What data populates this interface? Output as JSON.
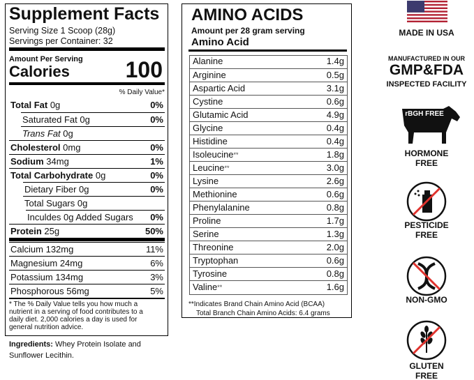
{
  "supplement_facts": {
    "title": "Supplement Facts",
    "serving_size": "Serving Size 1 Scoop (28g)",
    "servings_per_container": "Servings per Container: 32",
    "amount_per_serving": "Amount Per Serving",
    "calories_label": "Calories",
    "calories_value": "100",
    "daily_value_header": "% Daily Value*",
    "rows": [
      {
        "label": "Total Fat",
        "amount": "0g",
        "dv": "0%"
      },
      {
        "label": "Saturated Fat",
        "amount": "0g",
        "dv": "0%"
      },
      {
        "label": "Trans Fat",
        "amount": "0g"
      },
      {
        "label": "Cholesterol",
        "amount": "0mg",
        "dv": "0%"
      },
      {
        "label": "Sodium",
        "amount": "34mg",
        "dv": "1%"
      },
      {
        "label": "Total Carbohydrate",
        "amount": "0g",
        "dv": "0%"
      },
      {
        "label": "Dietary Fiber",
        "amount": "0g",
        "dv": "0%"
      },
      {
        "label": "Total Sugars",
        "amount": "0g"
      },
      {
        "label": "Inculdes 0g Added Sugars",
        "dv": "0%"
      },
      {
        "label": "Protein",
        "amount": "25g",
        "dv": "50%"
      }
    ],
    "minerals": [
      {
        "label": "Calcium",
        "amount": "132mg",
        "dv": "11%"
      },
      {
        "label": "Magnesium",
        "amount": "24mg",
        "dv": "6%"
      },
      {
        "label": "Potassium",
        "amount": "134mg",
        "dv": "3%"
      },
      {
        "label": "Phosphorous",
        "amount": "56mg",
        "dv": "5%"
      }
    ],
    "footnote": "* The % Daily Value tells you how much a nutrient in a serving of food contributes to a daily diet. 2,000 calories a day is used for general nutrition advice."
  },
  "ingredients": {
    "label": "Ingredients:",
    "text": "Whey Protein Isolate and Sunflower Lecithin."
  },
  "amino_acids": {
    "title": "AMINO ACIDS",
    "subtitle": "Amount per 28 gram serving",
    "column_header": "Amino Acid",
    "rows": [
      {
        "name": "Alanine",
        "amount": "1.4g"
      },
      {
        "name": "Arginine",
        "amount": "0.5g"
      },
      {
        "name": "Aspartic Acid",
        "amount": "3.1g"
      },
      {
        "name": "Cystine",
        "amount": "0.6g"
      },
      {
        "name": "Glutamic Acid",
        "amount": "4.9g"
      },
      {
        "name": "Glycine",
        "amount": "0.4g"
      },
      {
        "name": "Histidine",
        "amount": "0.4g"
      },
      {
        "name": "Isoleucine",
        "note": "**",
        "amount": "1.8g"
      },
      {
        "name": "Leucine",
        "note": "**",
        "amount": "3.0g"
      },
      {
        "name": "Lysine",
        "amount": "2.6g"
      },
      {
        "name": "Methionine",
        "amount": "0.6g"
      },
      {
        "name": "Phenylalanine",
        "amount": "0.8g"
      },
      {
        "name": "Proline",
        "amount": "1.7g"
      },
      {
        "name": "Serine",
        "amount": "1.3g"
      },
      {
        "name": "Threonine",
        "amount": "2.0g"
      },
      {
        "name": "Tryptophan",
        "amount": "0.6g"
      },
      {
        "name": "Tyrosine",
        "amount": "0.8g"
      },
      {
        "name": "Valine",
        "note": "**",
        "amount": "1.6g"
      }
    ],
    "footnote_1": "**Indicates Brand Chain Amino Acid (BCAA)",
    "footnote_2": "Total Branch Chain Amino Acids: 6.4 grams"
  },
  "badges": {
    "made_in_usa": "MADE IN USA",
    "manufactured": "MANUFACTURED IN OUR",
    "gmp_fda": "GMP&FDA",
    "inspected": "INSPECTED FACILITY",
    "rbgh": "rBGH FREE",
    "hormone": "HORMONE",
    "hormone_free": "FREE",
    "pesticide": "PESTICIDE",
    "pesticide_free": "FREE",
    "non_gmo": "NON-GMO",
    "gluten": "GLUTEN",
    "gluten_free": "FREE"
  }
}
